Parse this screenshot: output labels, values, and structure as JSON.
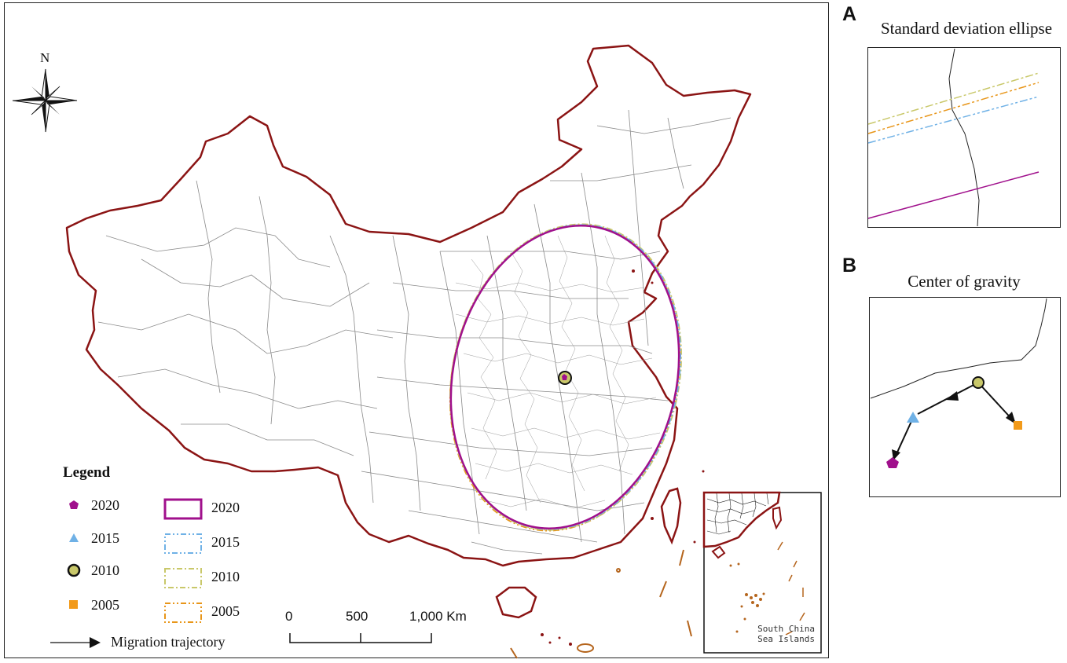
{
  "map": {
    "north_label": "N",
    "legend": {
      "title": "Legend",
      "points": [
        {
          "year": "2020",
          "symbol": "pentagon",
          "color": "#a0108c"
        },
        {
          "year": "2015",
          "symbol": "triangle",
          "color": "#6fb1e6"
        },
        {
          "year": "2010",
          "symbol": "circle",
          "color": "#c9c86a"
        },
        {
          "year": "2005",
          "symbol": "square",
          "color": "#f29a1a"
        }
      ],
      "ellipses": [
        {
          "year": "2020",
          "style": "solid",
          "color": "#a0108c"
        },
        {
          "year": "2015",
          "style": "dash-dot-dot",
          "color": "#6fb1e6"
        },
        {
          "year": "2010",
          "style": "dash-dot",
          "color": "#c9c86a"
        },
        {
          "year": "2005",
          "style": "dash-dot-dot",
          "color": "#e8961a"
        }
      ],
      "trajectory_label": "Migration trajectory"
    },
    "scale": {
      "labels": [
        "0",
        "500",
        "1,000 Km"
      ]
    },
    "inset_label": [
      "South China",
      "Sea Islands"
    ],
    "colors": {
      "border": "#8b1414",
      "province_lines": "#8a8a8a",
      "islands": "#b5651d"
    }
  },
  "panel_a": {
    "letter": "A",
    "title": "Standard deviation ellipse"
  },
  "panel_b": {
    "letter": "B",
    "title": "Center of gravity"
  }
}
